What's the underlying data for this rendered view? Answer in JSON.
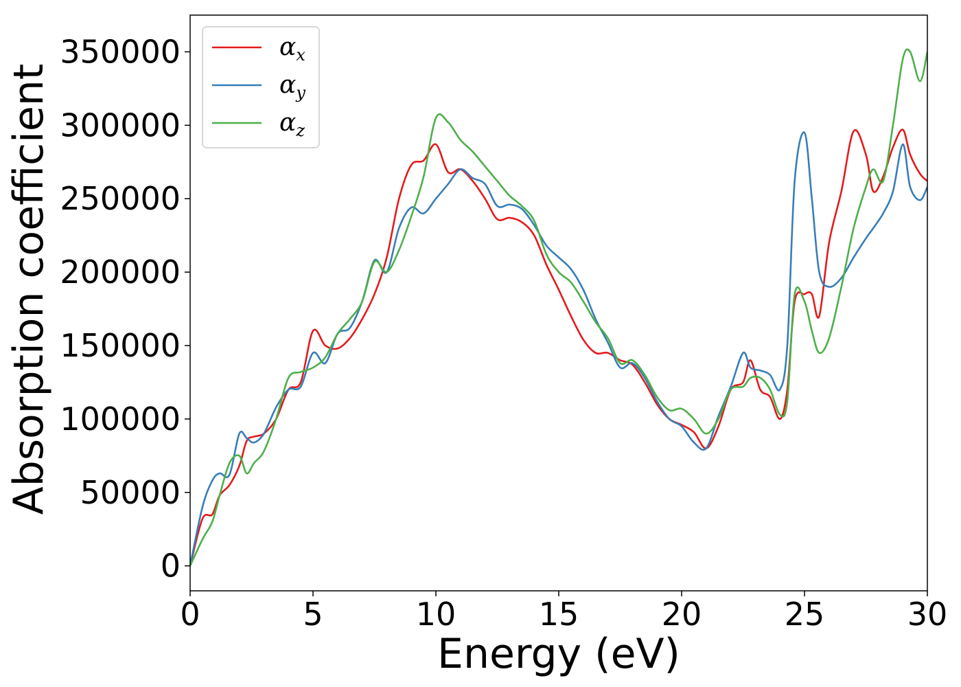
{
  "chart_data": {
    "type": "line",
    "title": "",
    "xlabel": "Energy (eV)",
    "ylabel": "Absorption coefficient",
    "xlim": [
      0,
      30
    ],
    "ylim": [
      -17000,
      375000
    ],
    "xticks": [
      0,
      5,
      10,
      15,
      20,
      25,
      30
    ],
    "yticks": [
      0,
      50000,
      100000,
      150000,
      200000,
      250000,
      300000,
      350000
    ],
    "grid": false,
    "legend": "top-left",
    "series": [
      {
        "name": "α_x",
        "symbol": "α",
        "subscript": "x",
        "color": "#e41a1c",
        "x": [
          0,
          0.5,
          0.9,
          1.2,
          1.6,
          2.0,
          2.3,
          2.6,
          3.0,
          3.5,
          4.0,
          4.5,
          5.0,
          5.5,
          6.0,
          6.5,
          7.0,
          7.5,
          8.0,
          8.5,
          9.0,
          9.5,
          10.0,
          10.5,
          11.0,
          11.5,
          12.0,
          12.5,
          13.0,
          13.5,
          14.0,
          14.5,
          15.0,
          15.5,
          16.0,
          16.5,
          17.0,
          17.5,
          18.0,
          18.5,
          19.0,
          19.5,
          20.0,
          20.5,
          21.0,
          21.5,
          22.0,
          22.5,
          22.8,
          23.2,
          23.6,
          24.0,
          24.3,
          24.6,
          25.0,
          25.3,
          25.6,
          26.0,
          26.5,
          27.0,
          27.5,
          27.8,
          28.2,
          28.6,
          29.0,
          29.3,
          29.7,
          30.0
        ],
        "values": [
          0,
          32000,
          35000,
          48000,
          55000,
          68000,
          85000,
          88000,
          90000,
          100000,
          120000,
          125000,
          160000,
          150000,
          148000,
          155000,
          168000,
          185000,
          210000,
          250000,
          273000,
          276000,
          287000,
          268000,
          270000,
          262000,
          250000,
          236000,
          237000,
          234000,
          225000,
          205000,
          188000,
          170000,
          154000,
          145000,
          145000,
          140000,
          137000,
          125000,
          110000,
          100000,
          96000,
          91000,
          80000,
          95000,
          120000,
          125000,
          140000,
          120000,
          115000,
          100000,
          120000,
          180000,
          185000,
          185000,
          170000,
          220000,
          255000,
          296000,
          280000,
          255000,
          265000,
          285000,
          297000,
          280000,
          267000,
          262000
        ]
      },
      {
        "name": "α_y",
        "symbol": "α",
        "subscript": "y",
        "color": "#377eb8",
        "x": [
          0,
          0.5,
          0.9,
          1.2,
          1.6,
          2.0,
          2.3,
          2.6,
          3.0,
          3.5,
          4.0,
          4.5,
          5.0,
          5.5,
          6.0,
          6.5,
          7.0,
          7.5,
          8.0,
          8.5,
          9.0,
          9.5,
          10.0,
          10.5,
          11.0,
          11.5,
          12.0,
          12.5,
          13.0,
          13.5,
          14.0,
          14.5,
          15.0,
          15.5,
          16.0,
          16.5,
          17.0,
          17.5,
          18.0,
          18.5,
          19.0,
          19.5,
          20.0,
          20.5,
          21.0,
          21.5,
          22.0,
          22.5,
          22.8,
          23.2,
          23.6,
          24.0,
          24.3,
          24.6,
          25.0,
          25.3,
          25.6,
          26.0,
          26.5,
          27.0,
          27.5,
          27.8,
          28.2,
          28.6,
          29.0,
          29.3,
          29.7,
          30.0
        ],
        "values": [
          0,
          40000,
          58000,
          63000,
          62000,
          90000,
          87000,
          84000,
          90000,
          108000,
          120000,
          122000,
          145000,
          138000,
          158000,
          162000,
          180000,
          208000,
          200000,
          230000,
          244000,
          240000,
          250000,
          260000,
          270000,
          264000,
          260000,
          245000,
          246000,
          243000,
          232000,
          218000,
          210000,
          202000,
          188000,
          168000,
          152000,
          135000,
          138000,
          128000,
          112000,
          100000,
          95000,
          84000,
          80000,
          102000,
          122000,
          145000,
          135000,
          133000,
          130000,
          120000,
          150000,
          262000,
          295000,
          250000,
          200000,
          190000,
          196000,
          210000,
          223000,
          230000,
          240000,
          255000,
          287000,
          258000,
          249000,
          258000
        ]
      },
      {
        "name": "α_z",
        "symbol": "α",
        "subscript": "z",
        "color": "#4daf4a",
        "x": [
          0,
          0.5,
          0.9,
          1.2,
          1.6,
          2.0,
          2.3,
          2.6,
          3.0,
          3.5,
          4.0,
          4.5,
          5.0,
          5.5,
          6.0,
          6.5,
          7.0,
          7.5,
          8.0,
          8.5,
          9.0,
          9.5,
          10.0,
          10.5,
          11.0,
          11.5,
          12.0,
          12.5,
          13.0,
          13.5,
          14.0,
          14.5,
          15.0,
          15.5,
          16.0,
          16.5,
          17.0,
          17.5,
          18.0,
          18.5,
          19.0,
          19.5,
          20.0,
          20.5,
          21.0,
          21.5,
          22.0,
          22.5,
          22.8,
          23.2,
          23.6,
          24.0,
          24.3,
          24.6,
          25.0,
          25.3,
          25.6,
          26.0,
          26.5,
          27.0,
          27.5,
          27.8,
          28.2,
          28.6,
          29.0,
          29.3,
          29.7,
          30.0
        ],
        "values": [
          0,
          18000,
          30000,
          48000,
          70000,
          75000,
          63000,
          70000,
          78000,
          100000,
          128000,
          132000,
          135000,
          142000,
          158000,
          168000,
          180000,
          207000,
          200000,
          215000,
          238000,
          265000,
          305000,
          302000,
          290000,
          282000,
          272000,
          262000,
          252000,
          245000,
          235000,
          212000,
          200000,
          193000,
          180000,
          166000,
          155000,
          138000,
          140000,
          130000,
          115000,
          106000,
          107000,
          100000,
          90000,
          100000,
          120000,
          122000,
          128000,
          128000,
          120000,
          103000,
          112000,
          185000,
          180000,
          160000,
          145000,
          155000,
          190000,
          230000,
          258000,
          270000,
          262000,
          300000,
          345000,
          350000,
          330000,
          350000
        ]
      }
    ]
  }
}
